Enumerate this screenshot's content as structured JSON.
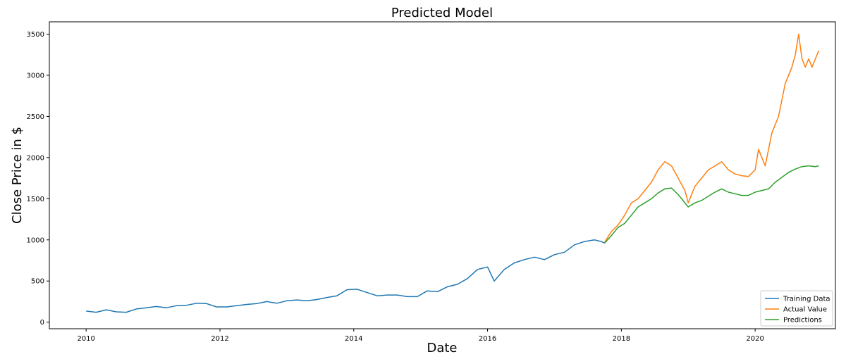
{
  "chart_data": {
    "type": "line",
    "title": "Predicted Model",
    "xlabel": "Date",
    "ylabel": "Close Price in $",
    "x_range": [
      "2009-07-01",
      "2021-04-01"
    ],
    "xlim_years": [
      2009.45,
      2021.2
    ],
    "ylim": [
      -80,
      3650
    ],
    "x_ticks": [
      "2010",
      "2012",
      "2014",
      "2016",
      "2018",
      "2020"
    ],
    "y_ticks": [
      "0",
      "500",
      "1000",
      "1500",
      "2000",
      "2500",
      "3000",
      "3500"
    ],
    "grid": false,
    "legend_position": "lower-right",
    "series": [
      {
        "name": "Training Data",
        "color": "#1f77b4",
        "points": [
          [
            2010.0,
            135
          ],
          [
            2010.15,
            120
          ],
          [
            2010.3,
            150
          ],
          [
            2010.45,
            125
          ],
          [
            2010.6,
            120
          ],
          [
            2010.75,
            160
          ],
          [
            2010.9,
            175
          ],
          [
            2011.05,
            190
          ],
          [
            2011.2,
            175
          ],
          [
            2011.35,
            200
          ],
          [
            2011.5,
            205
          ],
          [
            2011.65,
            230
          ],
          [
            2011.8,
            225
          ],
          [
            2011.95,
            185
          ],
          [
            2012.1,
            185
          ],
          [
            2012.25,
            200
          ],
          [
            2012.4,
            215
          ],
          [
            2012.55,
            225
          ],
          [
            2012.7,
            250
          ],
          [
            2012.85,
            230
          ],
          [
            2013.0,
            260
          ],
          [
            2013.15,
            270
          ],
          [
            2013.3,
            260
          ],
          [
            2013.45,
            275
          ],
          [
            2013.6,
            300
          ],
          [
            2013.75,
            320
          ],
          [
            2013.9,
            395
          ],
          [
            2014.05,
            400
          ],
          [
            2014.2,
            360
          ],
          [
            2014.35,
            320
          ],
          [
            2014.5,
            330
          ],
          [
            2014.65,
            330
          ],
          [
            2014.8,
            310
          ],
          [
            2014.95,
            310
          ],
          [
            2015.1,
            380
          ],
          [
            2015.25,
            370
          ],
          [
            2015.4,
            430
          ],
          [
            2015.55,
            460
          ],
          [
            2015.7,
            530
          ],
          [
            2015.85,
            640
          ],
          [
            2016.0,
            670
          ],
          [
            2016.1,
            500
          ],
          [
            2016.25,
            640
          ],
          [
            2016.4,
            720
          ],
          [
            2016.55,
            760
          ],
          [
            2016.7,
            790
          ],
          [
            2016.85,
            760
          ],
          [
            2017.0,
            820
          ],
          [
            2017.15,
            850
          ],
          [
            2017.3,
            940
          ],
          [
            2017.45,
            980
          ],
          [
            2017.6,
            1000
          ],
          [
            2017.7,
            980
          ],
          [
            2017.75,
            960
          ]
        ]
      },
      {
        "name": "Actual Value",
        "color": "#ff7f0e",
        "points": [
          [
            2017.75,
            970
          ],
          [
            2017.85,
            1100
          ],
          [
            2017.95,
            1180
          ],
          [
            2018.05,
            1300
          ],
          [
            2018.15,
            1450
          ],
          [
            2018.25,
            1500
          ],
          [
            2018.35,
            1600
          ],
          [
            2018.45,
            1700
          ],
          [
            2018.55,
            1850
          ],
          [
            2018.65,
            1950
          ],
          [
            2018.75,
            1900
          ],
          [
            2018.85,
            1750
          ],
          [
            2018.95,
            1600
          ],
          [
            2019.0,
            1450
          ],
          [
            2019.1,
            1650
          ],
          [
            2019.2,
            1750
          ],
          [
            2019.3,
            1850
          ],
          [
            2019.4,
            1900
          ],
          [
            2019.5,
            1950
          ],
          [
            2019.6,
            1850
          ],
          [
            2019.7,
            1800
          ],
          [
            2019.8,
            1780
          ],
          [
            2019.9,
            1770
          ],
          [
            2020.0,
            1850
          ],
          [
            2020.05,
            2100
          ],
          [
            2020.15,
            1900
          ],
          [
            2020.25,
            2300
          ],
          [
            2020.35,
            2500
          ],
          [
            2020.45,
            2900
          ],
          [
            2020.55,
            3100
          ],
          [
            2020.6,
            3250
          ],
          [
            2020.65,
            3500
          ],
          [
            2020.7,
            3200
          ],
          [
            2020.75,
            3100
          ],
          [
            2020.8,
            3200
          ],
          [
            2020.85,
            3100
          ],
          [
            2020.9,
            3200
          ],
          [
            2020.95,
            3300
          ]
        ]
      },
      {
        "name": "Predictions",
        "color": "#2ca02c",
        "points": [
          [
            2017.75,
            960
          ],
          [
            2017.85,
            1050
          ],
          [
            2017.95,
            1150
          ],
          [
            2018.05,
            1200
          ],
          [
            2018.15,
            1300
          ],
          [
            2018.25,
            1400
          ],
          [
            2018.35,
            1450
          ],
          [
            2018.45,
            1500
          ],
          [
            2018.55,
            1570
          ],
          [
            2018.65,
            1620
          ],
          [
            2018.75,
            1630
          ],
          [
            2018.85,
            1550
          ],
          [
            2018.95,
            1450
          ],
          [
            2019.0,
            1400
          ],
          [
            2019.1,
            1450
          ],
          [
            2019.2,
            1480
          ],
          [
            2019.3,
            1530
          ],
          [
            2019.4,
            1580
          ],
          [
            2019.5,
            1620
          ],
          [
            2019.6,
            1580
          ],
          [
            2019.7,
            1560
          ],
          [
            2019.8,
            1540
          ],
          [
            2019.9,
            1540
          ],
          [
            2020.0,
            1580
          ],
          [
            2020.1,
            1600
          ],
          [
            2020.2,
            1620
          ],
          [
            2020.3,
            1700
          ],
          [
            2020.4,
            1760
          ],
          [
            2020.5,
            1820
          ],
          [
            2020.6,
            1860
          ],
          [
            2020.7,
            1890
          ],
          [
            2020.8,
            1900
          ],
          [
            2020.9,
            1890
          ],
          [
            2020.95,
            1900
          ]
        ]
      }
    ]
  }
}
